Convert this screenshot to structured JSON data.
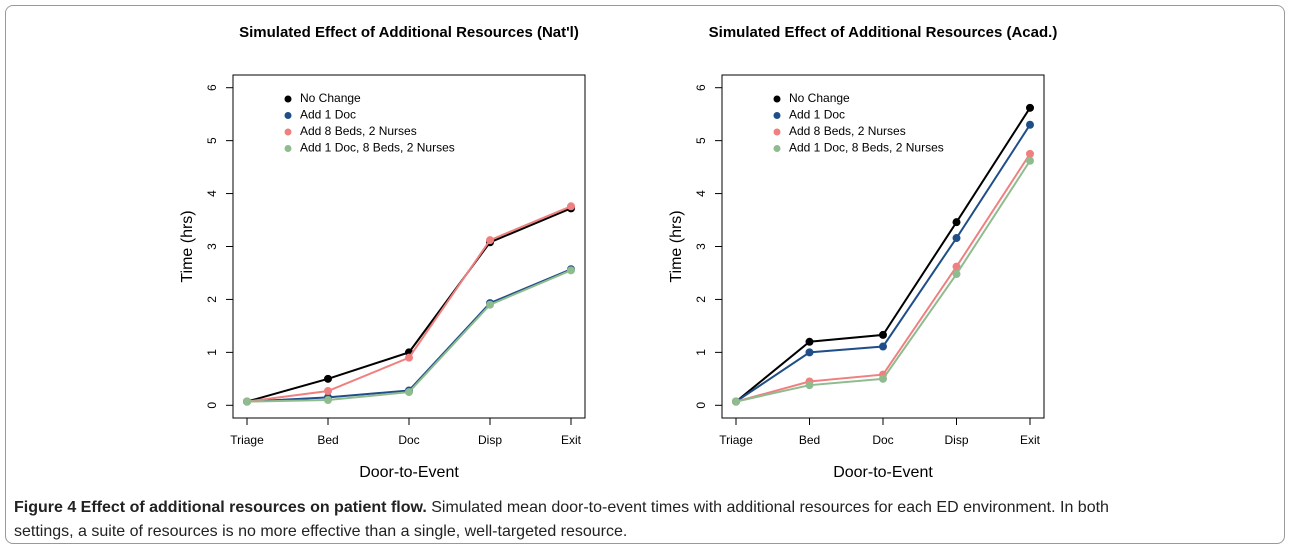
{
  "chart_data": [
    {
      "type": "line",
      "title": "Simulated Effect of Additional Resources (Nat'l)",
      "xlabel": "Door-to-Event",
      "ylabel": "Time (hrs)",
      "categories": [
        "Triage",
        "Bed",
        "Doc",
        "Disp",
        "Exit"
      ],
      "series": [
        {
          "name": "No Change",
          "color": "#000000",
          "values": [
            0.07,
            0.5,
            1.0,
            3.08,
            3.72
          ]
        },
        {
          "name": "Add 1 Doc",
          "color": "#1f4e89",
          "values": [
            0.07,
            0.15,
            0.28,
            1.93,
            2.57
          ]
        },
        {
          "name": "Add 8 Beds, 2 Nurses",
          "color": "#f08080",
          "values": [
            0.07,
            0.27,
            0.9,
            3.12,
            3.76
          ]
        },
        {
          "name": "Add 1 Doc, 8 Beds, 2 Nurses",
          "color": "#8fbc8f",
          "values": [
            0.07,
            0.1,
            0.25,
            1.9,
            2.55
          ]
        }
      ],
      "ylim": [
        -0.24,
        6.24
      ],
      "yticks": [
        0,
        1,
        2,
        3,
        4,
        5,
        6
      ],
      "legend": "top-left"
    },
    {
      "type": "line",
      "title": "Simulated Effect of Additional Resources (Acad.)",
      "xlabel": "Door-to-Event",
      "ylabel": "Time (hrs)",
      "categories": [
        "Triage",
        "Bed",
        "Doc",
        "Disp",
        "Exit"
      ],
      "series": [
        {
          "name": "No Change",
          "color": "#000000",
          "values": [
            0.07,
            1.2,
            1.33,
            3.46,
            5.62
          ]
        },
        {
          "name": "Add 1 Doc",
          "color": "#1f4e89",
          "values": [
            0.07,
            1.0,
            1.11,
            3.16,
            5.3
          ]
        },
        {
          "name": "Add 8 Beds, 2 Nurses",
          "color": "#f08080",
          "values": [
            0.07,
            0.45,
            0.58,
            2.62,
            4.75
          ]
        },
        {
          "name": "Add 1 Doc, 8 Beds, 2 Nurses",
          "color": "#8fbc8f",
          "values": [
            0.07,
            0.38,
            0.5,
            2.48,
            4.62
          ]
        }
      ],
      "ylim": [
        -0.24,
        6.24
      ],
      "yticks": [
        0,
        1,
        2,
        3,
        4,
        5,
        6
      ],
      "legend": "top-left"
    }
  ],
  "caption_title": "Figure 4 Effect of additional resources on patient flow.",
  "caption_text": "Simulated mean door-to-event times with additional resources for each ED environment. In both settings, a suite of resources is no more effective than a single, well-targeted resource."
}
